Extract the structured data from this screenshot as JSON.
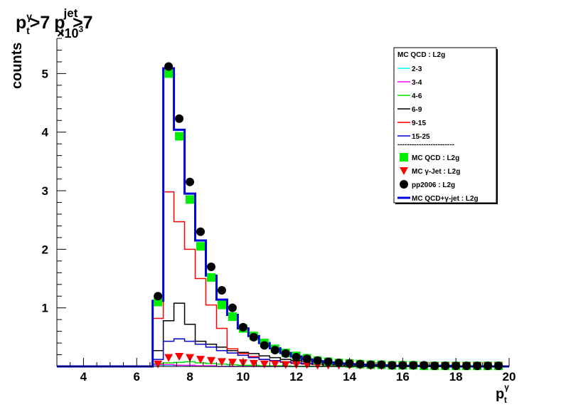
{
  "chart_data": {
    "type": "line",
    "title_parts": {
      "p": "p",
      "gamma": "γ",
      "t": "t",
      "gt7a": ">7",
      "jet": "jet",
      "gt7b": ">7"
    },
    "ylabel": "counts",
    "xlabel_parts": {
      "p": "p",
      "t": "t",
      "gamma": "γ"
    },
    "y_multiplier_label": "×10",
    "y_multiplier_exp": "3",
    "xlim": [
      3,
      20
    ],
    "ylim": [
      0,
      5.6
    ],
    "x_ticks": [
      4,
      6,
      8,
      10,
      12,
      14,
      16,
      18,
      20
    ],
    "y_ticks": [
      1,
      2,
      3,
      4,
      5
    ],
    "bin_edges": [
      3.0,
      3.4,
      3.8,
      4.2,
      4.6,
      5.0,
      5.4,
      5.8,
      6.2,
      6.6,
      7.0,
      7.4,
      7.8,
      8.2,
      8.6,
      9.0,
      9.4,
      9.8,
      10.2,
      10.6,
      11.0,
      11.4,
      11.8,
      12.2,
      12.6,
      13.0,
      13.4,
      13.8,
      14.2,
      14.6,
      15.0,
      15.4,
      15.8,
      16.2,
      16.6,
      17.0,
      17.4,
      17.8,
      18.2,
      18.6,
      19.0,
      19.4,
      19.8,
      20.0
    ],
    "series": [
      {
        "name": "2-3",
        "color": "#00ffff",
        "width": 1.5,
        "kind": "hist",
        "values": [
          0,
          0,
          0,
          0,
          0,
          0,
          0,
          0,
          0,
          0.02,
          0.02,
          0.02,
          0.01,
          0.01,
          0,
          0,
          0,
          0,
          0,
          0,
          0,
          0,
          0,
          0,
          0,
          0,
          0,
          0,
          0,
          0,
          0,
          0,
          0,
          0,
          0,
          0,
          0,
          0,
          0,
          0,
          0,
          0,
          0
        ]
      },
      {
        "name": "3-4",
        "color": "#ff00ff",
        "width": 1.5,
        "kind": "hist",
        "values": [
          0,
          0,
          0,
          0,
          0,
          0,
          0,
          0,
          0,
          0.03,
          0.03,
          0.02,
          0.02,
          0.01,
          0.01,
          0,
          0,
          0,
          0,
          0,
          0,
          0,
          0,
          0,
          0,
          0,
          0,
          0,
          0,
          0,
          0,
          0,
          0,
          0,
          0,
          0,
          0,
          0,
          0,
          0,
          0,
          0,
          0
        ]
      },
      {
        "name": "4-6",
        "color": "#00dd00",
        "width": 1.5,
        "kind": "hist",
        "values": [
          0,
          0,
          0,
          0,
          0,
          0,
          0,
          0,
          0,
          0.05,
          0.06,
          0.07,
          0.08,
          0.06,
          0.05,
          0.04,
          0.03,
          0.02,
          0.02,
          0.01,
          0.01,
          0.01,
          0,
          0,
          0,
          0,
          0,
          0,
          0,
          0,
          0,
          0,
          0,
          0,
          0,
          0,
          0,
          0,
          0,
          0,
          0,
          0,
          0
        ]
      },
      {
        "name": "6-9",
        "color": "#000000",
        "width": 1.5,
        "kind": "hist",
        "values": [
          0,
          0,
          0,
          0,
          0,
          0,
          0,
          0,
          0,
          0.27,
          0.78,
          1.08,
          0.72,
          0.43,
          0.38,
          0.33,
          0.27,
          0.24,
          0.22,
          0.18,
          0.15,
          0.12,
          0.1,
          0.08,
          0.06,
          0.05,
          0.04,
          0.03,
          0.02,
          0.02,
          0.02,
          0.01,
          0.01,
          0.01,
          0.01,
          0,
          0,
          0,
          0,
          0,
          0,
          0,
          0
        ]
      },
      {
        "name": "9-15",
        "color": "#ff0000",
        "width": 1.5,
        "kind": "hist",
        "values": [
          0,
          0,
          0,
          0,
          0,
          0,
          0,
          0,
          0,
          0.82,
          2.98,
          2.47,
          2.0,
          1.5,
          1.05,
          0.65,
          0.3,
          0.22,
          0.17,
          0.12,
          0.09,
          0.07,
          0.05,
          0.04,
          0.03,
          0.02,
          0.02,
          0.01,
          0.01,
          0.01,
          0.01,
          0,
          0,
          0,
          0,
          0,
          0,
          0,
          0,
          0,
          0,
          0,
          0
        ]
      },
      {
        "name": "15-25",
        "color": "#0000cc",
        "width": 1.5,
        "kind": "hist",
        "values": [
          0,
          0,
          0,
          0,
          0,
          0,
          0,
          0,
          0,
          0.12,
          0.43,
          0.47,
          0.43,
          0.38,
          0.33,
          0.27,
          0.23,
          0.19,
          0.15,
          0.12,
          0.1,
          0.08,
          0.06,
          0.05,
          0.04,
          0.03,
          0.03,
          0.02,
          0.02,
          0.01,
          0.01,
          0.01,
          0.01,
          0,
          0,
          0,
          0,
          0,
          0,
          0,
          0,
          0,
          0
        ]
      },
      {
        "name": "MC QCD+γ-jet : L2g",
        "color": "#0000dd",
        "width": 3,
        "kind": "hist",
        "values": [
          0,
          0,
          0,
          0,
          0,
          0,
          0,
          0,
          0,
          1.12,
          5.09,
          4.04,
          2.95,
          2.15,
          1.55,
          1.14,
          0.88,
          0.65,
          0.52,
          0.4,
          0.31,
          0.23,
          0.17,
          0.12,
          0.09,
          0.07,
          0.05,
          0.04,
          0.03,
          0.02,
          0.02,
          0.01,
          0.01,
          0.01,
          0.01,
          0.01,
          0.01,
          0,
          0,
          0,
          0,
          0,
          0
        ]
      },
      {
        "name": "MC QCD : L2g",
        "color": "#00ee00",
        "kind": "square",
        "x": [
          6.8,
          7.2,
          7.6,
          8.0,
          8.4,
          8.8,
          9.2,
          9.6,
          10.0,
          10.4,
          10.8,
          11.2,
          11.6,
          12.0,
          12.4,
          12.8,
          13.2,
          13.6,
          14.0,
          14.4,
          14.8,
          15.2,
          15.6,
          16.0,
          16.4,
          16.8,
          17.2,
          17.6,
          18.0,
          18.4,
          18.8,
          19.2,
          19.6
        ],
        "y": [
          1.1,
          5.0,
          3.93,
          2.85,
          2.05,
          1.52,
          1.05,
          0.85,
          0.65,
          0.52,
          0.4,
          0.3,
          0.23,
          0.18,
          0.14,
          0.1,
          0.08,
          0.06,
          0.05,
          0.04,
          0.03,
          0.03,
          0.02,
          0.02,
          0.02,
          0.01,
          0.01,
          0.01,
          0.01,
          0.01,
          0.01,
          0.01,
          0.01
        ]
      },
      {
        "name": "MC γ-Jet : L2g",
        "color": "#ff0000",
        "kind": "triangle",
        "x": [
          6.8,
          7.2,
          7.6,
          8.0,
          8.4,
          8.8,
          9.2,
          9.6,
          10.0,
          10.4,
          10.8,
          11.2,
          11.6,
          12.0,
          12.4,
          12.8,
          13.2,
          13.6,
          14.0,
          14.4,
          14.8,
          15.2,
          15.6,
          16.0,
          16.4,
          16.8,
          17.2,
          17.6,
          18.0,
          18.4,
          18.8,
          19.2,
          19.6
        ],
        "y": [
          0.04,
          0.15,
          0.17,
          0.15,
          0.12,
          0.1,
          0.08,
          0.07,
          0.06,
          0.05,
          0.04,
          0.04,
          0.03,
          0.03,
          0.03,
          0.02,
          0.02,
          0.02,
          0.02,
          0.02,
          0.01,
          0.01,
          0.01,
          0.01,
          0.01,
          0.01,
          0.01,
          0.01,
          0.01,
          0.01,
          0.01,
          0.01,
          0.01
        ]
      },
      {
        "name": "pp2006 : L2g",
        "color": "#000000",
        "kind": "circle",
        "x": [
          6.8,
          7.2,
          7.6,
          8.0,
          8.4,
          8.8,
          9.2,
          9.6,
          10.0,
          10.4,
          10.8,
          11.2,
          11.6,
          12.0,
          12.4,
          12.8,
          13.2,
          13.6,
          14.0,
          14.4,
          14.8,
          15.2,
          15.6,
          16.0,
          16.4,
          16.8,
          17.2,
          17.6,
          18.0,
          18.4,
          18.8,
          19.2,
          19.6
        ],
        "y": [
          1.2,
          5.12,
          4.23,
          3.15,
          2.3,
          1.7,
          1.3,
          1.0,
          0.67,
          0.5,
          0.36,
          0.28,
          0.22,
          0.16,
          0.13,
          0.1,
          0.08,
          0.06,
          0.05,
          0.04,
          0.03,
          0.03,
          0.02,
          0.02,
          0.02,
          0.02,
          0.01,
          0.01,
          0.01,
          0.01,
          0.01,
          0.01,
          0.01
        ]
      }
    ],
    "legend": {
      "header": "MC QCD : L2g",
      "separator": "------------------------",
      "items": [
        {
          "label": "2-3",
          "color": "#00ffff",
          "kind": "line"
        },
        {
          "label": "3-4",
          "color": "#ff00ff",
          "kind": "line"
        },
        {
          "label": "4-6",
          "color": "#00dd00",
          "kind": "line"
        },
        {
          "label": "6-9",
          "color": "#000000",
          "kind": "line"
        },
        {
          "label": "9-15",
          "color": "#ff0000",
          "kind": "line"
        },
        {
          "label": "15-25",
          "color": "#0000cc",
          "kind": "line"
        },
        {
          "label": "MC QCD : L2g",
          "color": "#00ee00",
          "kind": "square"
        },
        {
          "label": "MC γ-Jet : L2g",
          "color": "#ff0000",
          "kind": "triangle"
        },
        {
          "label": "pp2006 : L2g",
          "color": "#000000",
          "kind": "circle"
        },
        {
          "label": "MC QCD+γ-jet : L2g",
          "color": "#0000dd",
          "kind": "thickline"
        }
      ],
      "position": "top-right"
    },
    "grid": false
  }
}
